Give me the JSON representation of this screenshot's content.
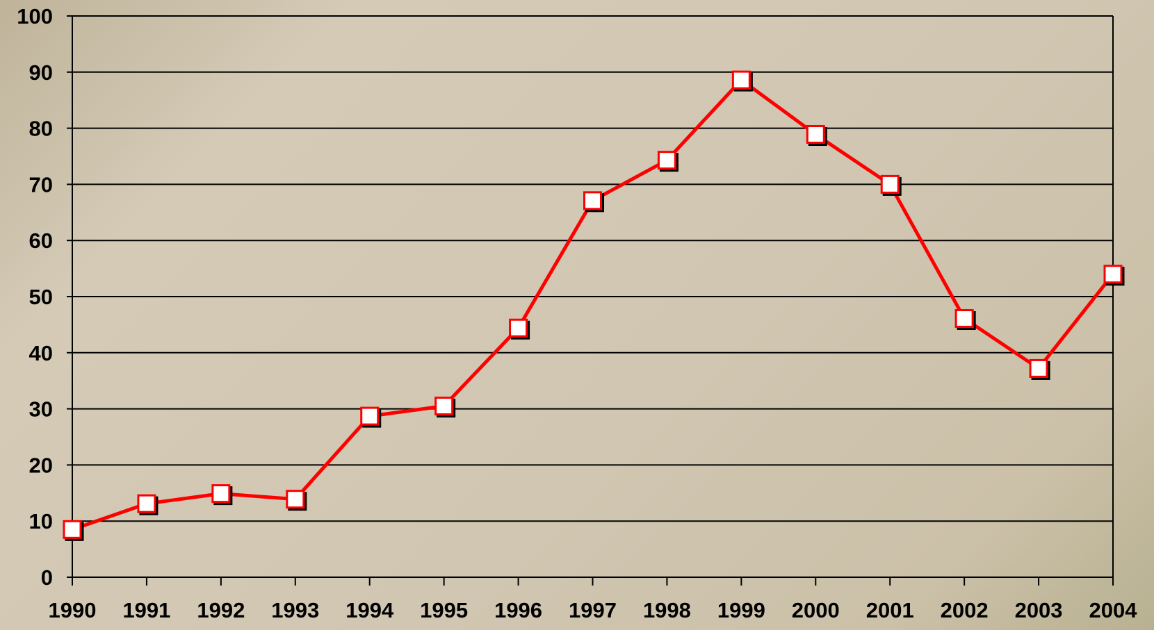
{
  "chart_data": {
    "type": "line",
    "x": [
      1990,
      1991,
      1992,
      1993,
      1994,
      1995,
      1996,
      1997,
      1998,
      1999,
      2000,
      2001,
      2002,
      2003,
      2004
    ],
    "series": [
      {
        "color": "#ff0000",
        "values": [
          8.5,
          13.1,
          14.9,
          13.9,
          28.7,
          30.5,
          44.4,
          67.1,
          74.3,
          88.6,
          78.9,
          70.0,
          46.1,
          37.2,
          54.0
        ]
      }
    ],
    "xlim": [
      1990,
      2004
    ],
    "xticks": [
      1990,
      1991,
      1992,
      1993,
      1994,
      1995,
      1996,
      1997,
      1998,
      1999,
      2000,
      2001,
      2002,
      2003,
      2004
    ],
    "ylim": [
      0,
      100
    ],
    "yticks": [
      0,
      10,
      20,
      30,
      40,
      50,
      60,
      70,
      80,
      90,
      100
    ],
    "grid": true
  }
}
